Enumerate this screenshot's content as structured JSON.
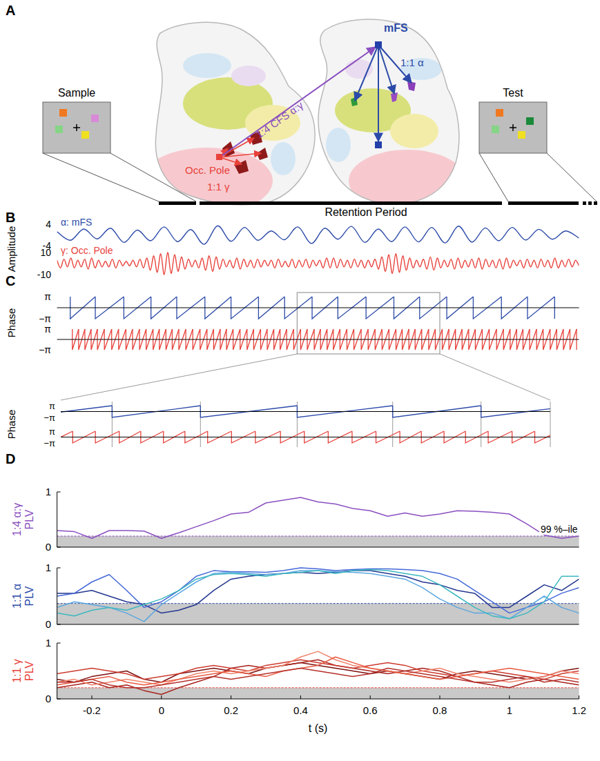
{
  "panel_labels": [
    "A",
    "B",
    "C",
    "D"
  ],
  "diagram": {
    "sample_label": "Sample",
    "test_label": "Test",
    "mfs_label": "mFS",
    "occ_label": "Occ. Pole",
    "cfs_label": "1:4 CFS α:γ",
    "alpha_label": "1:1 α",
    "gamma_label": "1:1 γ",
    "retention_label": "Retention Period"
  },
  "chart_data": [
    {
      "type": "line",
      "ylabel": "Amplitude",
      "ylim": [
        -4,
        4
      ],
      "yticks": [
        -4,
        4
      ],
      "tick_labels": "y",
      "series": [
        {
          "name": "α: mFS",
          "color": "#2b4aa8",
          "values": [
            1.2,
            -2.0,
            2.2,
            -1.5,
            2.5,
            -2.8,
            1.8,
            -2.2,
            3.0,
            -2.5,
            2.0,
            -3.5,
            3.4,
            -2.4,
            2.8,
            -2.0,
            1.5,
            -1.8,
            3.0,
            -3.2,
            2.5,
            -1.6,
            3.2,
            -2.8,
            2.2,
            -2.5,
            3.0,
            -2.6,
            2.8,
            -3.0,
            3.3,
            -2.7,
            2.6,
            -2.2,
            2.8,
            -1.9,
            2.1,
            -1.6,
            1.5,
            -1.2
          ]
        }
      ]
    },
    {
      "type": "line",
      "ylim": [
        -10,
        10
      ],
      "yticks": [
        -10,
        10
      ],
      "tick_labels": "y",
      "series": [
        {
          "name": "γ: Occ. Pole",
          "color": "#e8413a",
          "values": [
            3,
            -4,
            4,
            -3,
            5,
            -4,
            3,
            -3,
            4,
            -5,
            5,
            -4,
            3,
            -3,
            2,
            -3,
            4,
            -4,
            3,
            -2,
            2,
            -2,
            3,
            -3,
            4,
            -4,
            5,
            -6,
            7,
            -8,
            9,
            -10,
            10,
            -9,
            8,
            -7,
            6,
            -5,
            4,
            -3,
            3,
            -4,
            5,
            -6,
            7,
            -7,
            6,
            -5,
            4,
            -3,
            3,
            -4,
            5,
            -5,
            4,
            -3,
            3,
            -4,
            4,
            -3,
            3,
            -2,
            3,
            -4,
            4,
            -3,
            2,
            -3,
            4,
            -4,
            3,
            -3,
            4,
            -4,
            3,
            -2,
            3,
            -4,
            5,
            -4,
            5,
            -4,
            4,
            -3,
            3,
            -4,
            4,
            -3,
            3,
            -4,
            3,
            -3,
            4,
            -5,
            6,
            -7,
            8,
            -9,
            9,
            -8,
            7,
            -6,
            5,
            -4,
            3,
            -3,
            4,
            -5,
            6,
            -6,
            5,
            -4,
            3,
            -3,
            4,
            -5,
            5,
            -4,
            3,
            -3,
            4,
            -4,
            5,
            -5,
            4,
            -3,
            3,
            -4,
            4,
            -5,
            5,
            -4,
            3,
            -2,
            3,
            -4,
            4,
            -3,
            3,
            -4,
            4,
            -3,
            3,
            -4,
            5,
            -4,
            3,
            -3,
            4,
            -3,
            3,
            -2
          ]
        }
      ]
    },
    {
      "type": "line",
      "ylabel": "Phase",
      "xlim": [
        -0.3,
        1.2
      ],
      "ylim": [
        -3.1416,
        3.1416
      ],
      "yticks": [
        {
          "value": -3.1416,
          "label": "−π"
        },
        {
          "value": 3.1416,
          "label": "π"
        }
      ],
      "tick_labels": "y",
      "baseline": 0,
      "zoom_xlim": [
        0.39,
        0.8
      ],
      "series": [
        {
          "color": "#2b4aa8",
          "x": [
            -0.262,
            -0.19,
            -0.108,
            -0.03,
            0.044,
            0.125,
            0.2,
            0.279,
            0.354,
            0.433,
            0.507,
            0.588,
            0.668,
            0.742,
            0.82,
            0.896,
            0.977,
            1.052,
            1.13
          ]
        }
      ]
    },
    {
      "type": "line",
      "xlim": [
        -0.3,
        1.2
      ],
      "ylim": [
        -3.1416,
        3.1416
      ],
      "yticks": [
        {
          "value": -3.1416,
          "label": "−π"
        },
        {
          "value": 3.1416,
          "label": "π"
        }
      ],
      "tick_labels": "y",
      "baseline": 0,
      "zoom_xlim": [
        0.39,
        0.8
      ],
      "series": [
        {
          "color": "#e8413a",
          "x": [
            -0.256,
            -0.238,
            -0.22,
            -0.202,
            -0.184,
            -0.164,
            -0.143,
            -0.123,
            -0.102,
            -0.083,
            -0.063,
            -0.044,
            -0.024,
            -0.006,
            0.013,
            0.031,
            0.05,
            0.07,
            0.09,
            0.111,
            0.131,
            0.15,
            0.169,
            0.187,
            0.206,
            0.226,
            0.246,
            0.265,
            0.285,
            0.304,
            0.323,
            0.341,
            0.36,
            0.38,
            0.4,
            0.419,
            0.439,
            0.457,
            0.476,
            0.494,
            0.513,
            0.533,
            0.553,
            0.574,
            0.594,
            0.614,
            0.634,
            0.654,
            0.674,
            0.692,
            0.711,
            0.729,
            0.748,
            0.768,
            0.787,
            0.807,
            0.826,
            0.845,
            0.864,
            0.883,
            0.902,
            0.922,
            0.942,
            0.963,
            0.983,
            1.002,
            1.021,
            1.039,
            1.058,
            1.078,
            1.097,
            1.117,
            1.136,
            1.155,
            1.174,
            1.193
          ]
        }
      ]
    },
    {
      "type": "line",
      "ylabel": "1:4 α:γ PLV",
      "color": "#8a4fc0",
      "xlim": [
        -0.3,
        1.2
      ],
      "ylim": [
        0,
        1
      ],
      "yticks": [
        0,
        1
      ],
      "tick_labels": "y",
      "threshold": 0.2,
      "threshold_label": "99 %–ile",
      "x": [
        -0.3,
        -0.25,
        -0.2,
        -0.15,
        -0.1,
        -0.05,
        0,
        0.05,
        0.1,
        0.15,
        0.2,
        0.25,
        0.3,
        0.35,
        0.4,
        0.45,
        0.5,
        0.55,
        0.6,
        0.65,
        0.7,
        0.75,
        0.8,
        0.85,
        0.9,
        0.95,
        1,
        1.05,
        1.1,
        1.15,
        1.2
      ],
      "series": [
        {
          "color": "#8a4fc0",
          "values": [
            0.3,
            0.28,
            0.16,
            0.3,
            0.3,
            0.29,
            0.16,
            0.26,
            0.37,
            0.48,
            0.6,
            0.63,
            0.8,
            0.85,
            0.9,
            0.82,
            0.78,
            0.7,
            0.66,
            0.56,
            0.62,
            0.56,
            0.6,
            0.66,
            0.65,
            0.63,
            0.6,
            0.42,
            0.22,
            0.16,
            0.2
          ]
        }
      ]
    },
    {
      "type": "line",
      "ylabel": "1:1 α PLV",
      "color": "#2b4aa8",
      "xlim": [
        -0.3,
        1.2
      ],
      "ylim": [
        0,
        1
      ],
      "yticks": [
        0,
        1
      ],
      "tick_labels": "y",
      "threshold": 0.37,
      "x": [
        -0.3,
        -0.25,
        -0.2,
        -0.15,
        -0.1,
        -0.05,
        0,
        0.05,
        0.1,
        0.15,
        0.2,
        0.25,
        0.3,
        0.35,
        0.4,
        0.45,
        0.5,
        0.55,
        0.6,
        0.65,
        0.7,
        0.75,
        0.8,
        0.85,
        0.9,
        0.95,
        1,
        1.05,
        1.1,
        1.15,
        1.2
      ],
      "series": [
        {
          "color": "#22368f",
          "values": [
            0.55,
            0.55,
            0.6,
            0.5,
            0.4,
            0.35,
            0.2,
            0.25,
            0.35,
            0.6,
            0.8,
            0.85,
            0.88,
            0.9,
            0.92,
            0.9,
            0.92,
            0.95,
            0.95,
            0.9,
            0.85,
            0.75,
            0.7,
            0.6,
            0.55,
            0.3,
            0.3,
            0.5,
            0.7,
            0.6,
            0.8
          ]
        },
        {
          "color": "#4468d8",
          "values": [
            0.5,
            0.55,
            0.75,
            0.88,
            0.6,
            0.3,
            0.4,
            0.6,
            0.85,
            0.95,
            0.93,
            0.93,
            0.92,
            0.95,
            1,
            0.98,
            0.95,
            0.97,
            0.98,
            0.98,
            0.97,
            0.95,
            0.9,
            0.8,
            0.6,
            0.4,
            0.2,
            0.3,
            0.4,
            0.55,
            0.65
          ]
        },
        {
          "color": "#5aa6e0",
          "values": [
            0.3,
            0.4,
            0.35,
            0.3,
            0.2,
            0.05,
            0.35,
            0.55,
            0.75,
            0.9,
            0.92,
            0.9,
            0.88,
            0.9,
            0.95,
            0.95,
            0.93,
            0.92,
            0.9,
            0.85,
            0.8,
            0.65,
            0.45,
            0.3,
            0.2,
            0.2,
            0.1,
            0.3,
            0.5,
            0.3,
            0.2
          ]
        },
        {
          "color": "#3cb8c0",
          "values": [
            0.2,
            0.15,
            0.25,
            0.3,
            0.25,
            0.35,
            0.45,
            0.6,
            0.8,
            0.88,
            0.9,
            0.88,
            0.85,
            0.9,
            0.92,
            0.95,
            0.9,
            0.95,
            0.97,
            0.95,
            0.9,
            0.85,
            0.7,
            0.5,
            0.3,
            0.15,
            0.1,
            0.2,
            0.4,
            0.85,
            0.85
          ]
        }
      ]
    },
    {
      "type": "line",
      "ylabel": "1:1 γ PLV",
      "color": "#e8413a",
      "xlim": [
        -0.3,
        1.2
      ],
      "ylim": [
        0,
        1
      ],
      "yticks": [
        0,
        1
      ],
      "xticks": [
        -0.2,
        0,
        0.2,
        0.4,
        0.6,
        0.8,
        1,
        1.2
      ],
      "xlabel": "t (s)",
      "threshold": 0.2,
      "x": [
        -0.3,
        -0.25,
        -0.2,
        -0.15,
        -0.1,
        -0.05,
        0,
        0.05,
        0.1,
        0.15,
        0.2,
        0.25,
        0.3,
        0.35,
        0.4,
        0.45,
        0.5,
        0.55,
        0.6,
        0.65,
        0.7,
        0.75,
        0.8,
        0.85,
        0.9,
        0.95,
        1,
        1.05,
        1.1,
        1.15,
        1.2
      ],
      "series": [
        {
          "color": "#7d1010",
          "values": [
            0.35,
            0.3,
            0.4,
            0.45,
            0.5,
            0.35,
            0.3,
            0.45,
            0.5,
            0.55,
            0.5,
            0.45,
            0.55,
            0.6,
            0.65,
            0.6,
            0.55,
            0.5,
            0.45,
            0.5,
            0.45,
            0.4,
            0.35,
            0.45,
            0.5,
            0.45,
            0.4,
            0.35,
            0.4,
            0.5,
            0.55
          ]
        },
        {
          "color": "#a8221c",
          "values": [
            0.2,
            0.25,
            0.3,
            0.2,
            0.25,
            0.15,
            0.08,
            0.2,
            0.3,
            0.4,
            0.55,
            0.6,
            0.55,
            0.6,
            0.65,
            0.7,
            0.6,
            0.55,
            0.5,
            0.45,
            0.5,
            0.55,
            0.5,
            0.4,
            0.3,
            0.25,
            0.2,
            0.3,
            0.35,
            0.3,
            0.25
          ]
        },
        {
          "color": "#cc3a2e",
          "values": [
            0.45,
            0.5,
            0.55,
            0.5,
            0.45,
            0.35,
            0.4,
            0.45,
            0.55,
            0.6,
            0.55,
            0.5,
            0.6,
            0.65,
            0.7,
            0.65,
            0.6,
            0.55,
            0.6,
            0.65,
            0.6,
            0.5,
            0.45,
            0.4,
            0.45,
            0.5,
            0.45,
            0.4,
            0.35,
            0.45,
            0.5
          ]
        },
        {
          "color": "#f2826a",
          "values": [
            0.3,
            0.35,
            0.25,
            0.3,
            0.35,
            0.3,
            0.25,
            0.35,
            0.45,
            0.5,
            0.45,
            0.5,
            0.55,
            0.6,
            0.75,
            0.85,
            0.7,
            0.6,
            0.55,
            0.5,
            0.45,
            0.5,
            0.55,
            0.45,
            0.4,
            0.35,
            0.3,
            0.35,
            0.4,
            0.5,
            0.45
          ]
        },
        {
          "color": "#e85a40",
          "values": [
            0.25,
            0.3,
            0.35,
            0.4,
            0.3,
            0.25,
            0.3,
            0.35,
            0.4,
            0.45,
            0.5,
            0.45,
            0.4,
            0.5,
            0.55,
            0.6,
            0.75,
            0.65,
            0.55,
            0.5,
            0.45,
            0.4,
            0.35,
            0.4,
            0.45,
            0.5,
            0.55,
            0.5,
            0.45,
            0.4,
            0.35
          ]
        },
        {
          "color": "#b5302a",
          "values": [
            0.3,
            0.3,
            0.35,
            0.25,
            0.2,
            0.2,
            0.25,
            0.3,
            0.35,
            0.4,
            0.35,
            0.4,
            0.45,
            0.5,
            0.55,
            0.5,
            0.45,
            0.4,
            0.45,
            0.55,
            0.5,
            0.45,
            0.4,
            0.35,
            0.3,
            0.3,
            0.35,
            0.4,
            0.3,
            0.35,
            0.3
          ]
        }
      ]
    }
  ]
}
